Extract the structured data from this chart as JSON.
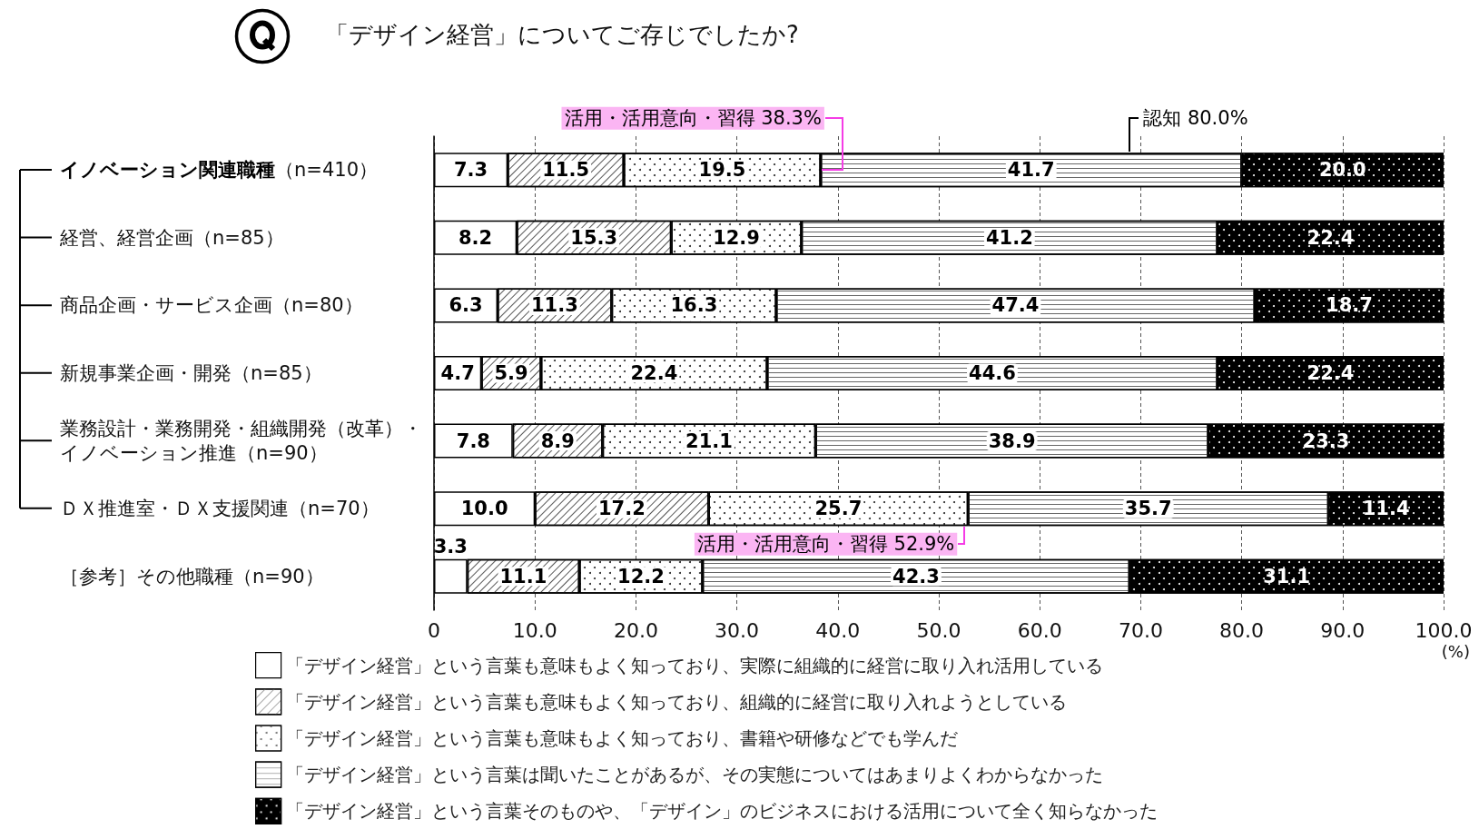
{
  "chart_data": {
    "type": "bar",
    "orientation": "horizontal",
    "stacked": true,
    "title": "「デザイン経営」についてご存じでしたか?",
    "xlabel": "(%)",
    "categories": [
      "イノベーション関連職種（n=410）",
      "経営、経営企画（n=85）",
      "商品企画・サービス企画（n=80）",
      "新規事業企画・開発（n=85）",
      "業務設計・業務開発・組織開発（改革）・イノベーション推進（n=90）",
      "ＤＸ推進室・ＤＸ支援関連（n=70）",
      "［参考］その他職種（n=90）"
    ],
    "series": [
      {
        "name": "「デザイン経営」という言葉も意味もよく知っており、実際に組織的に経営に取り入れ活用している",
        "color": "#ffffff",
        "values": [
          7.3,
          8.2,
          6.3,
          4.7,
          7.8,
          10.0,
          3.3
        ],
        "value_labels": [
          "7.3",
          "8.2",
          "6.3",
          "4.7",
          "7.8",
          "10.0",
          "3.3"
        ]
      },
      {
        "name": "「デザイン経営」という言葉も意味もよく知っており、組織的に経営に取り入れようとしている",
        "color": "#ffffff",
        "values": [
          11.5,
          15.3,
          11.3,
          5.9,
          8.9,
          17.2,
          11.1
        ],
        "value_labels": [
          "11.5",
          "15.3",
          "11.3",
          "5.9",
          "8.9",
          "17.2",
          "11.1"
        ]
      },
      {
        "name": "「デザイン経営」という言葉も意味もよく知っており、書籍や研修などでも学んだ",
        "color": "#ffffff",
        "values": [
          19.5,
          12.9,
          16.3,
          22.4,
          21.1,
          25.7,
          12.2
        ],
        "value_labels": [
          "19.5",
          "12.9",
          "16.3",
          "22.4",
          "21.1",
          "25.7",
          "12.2"
        ]
      },
      {
        "name": "「デザイン経営」という言葉は聞いたことがあるが、その実態についてはあまりよくわからなかった",
        "color": "#ffffff",
        "values": [
          41.7,
          41.2,
          47.4,
          44.6,
          38.9,
          35.7,
          42.3
        ],
        "value_labels": [
          "41.7",
          "41.2",
          "47.4",
          "44.6",
          "38.9",
          "35.7",
          "42.3"
        ]
      },
      {
        "name": "「デザイン経営」という言葉そのものや、「デザイン」のビジネスにおける活用について全く知らなかった",
        "color": "#000000",
        "values": [
          20.0,
          22.4,
          18.7,
          22.4,
          23.3,
          11.4,
          31.1
        ],
        "value_labels": [
          "20.0",
          "22.4",
          "18.7",
          "22.4",
          "23.3",
          "11.4",
          "31.1"
        ]
      }
    ],
    "xlim": [
      0,
      100
    ],
    "xticks": [
      0,
      {
        "value": 10,
        "label": "10.0"
      },
      {
        "value": 20,
        "label": "20.0"
      },
      {
        "value": 30,
        "label": "30.0"
      },
      {
        "value": 40,
        "label": "40.0"
      },
      {
        "value": 50,
        "label": "50.0"
      },
      {
        "value": 60,
        "label": "60.0"
      },
      {
        "value": 70,
        "label": "70.0"
      },
      {
        "value": 80,
        "label": "80.0"
      },
      {
        "value": 90,
        "label": "90.0"
      },
      {
        "value": 100,
        "label": "100.0"
      }
    ],
    "grid": "x",
    "legend": "bottom",
    "annotations": [
      {
        "text": "活用・活用意向・習得 38.3%",
        "x": 38.3,
        "y": "イノベーション関連職種（n=410）"
      },
      {
        "text": "認知 80.0%",
        "x": 80,
        "y": "イノベーション関連職種（n=410）"
      },
      {
        "text": "活用・活用意向・習得 52.9%",
        "x": 52.9,
        "y": "ＤＸ推進室・ＤＸ支援関連（n=70）"
      }
    ]
  }
}
